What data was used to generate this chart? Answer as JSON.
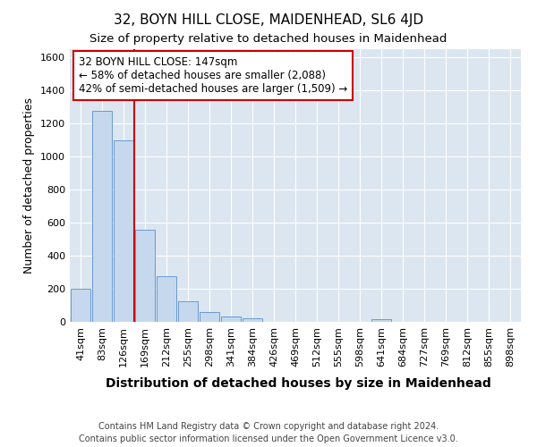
{
  "title": "32, BOYN HILL CLOSE, MAIDENHEAD, SL6 4JD",
  "subtitle": "Size of property relative to detached houses in Maidenhead",
  "xlabel": "Distribution of detached houses by size in Maidenhead",
  "ylabel": "Number of detached properties",
  "footer_line1": "Contains HM Land Registry data © Crown copyright and database right 2024.",
  "footer_line2": "Contains public sector information licensed under the Open Government Licence v3.0.",
  "categories": [
    "41sqm",
    "83sqm",
    "126sqm",
    "169sqm",
    "212sqm",
    "255sqm",
    "298sqm",
    "341sqm",
    "384sqm",
    "426sqm",
    "469sqm",
    "512sqm",
    "555sqm",
    "598sqm",
    "641sqm",
    "684sqm",
    "727sqm",
    "769sqm",
    "812sqm",
    "855sqm",
    "898sqm"
  ],
  "values": [
    200,
    1275,
    1100,
    558,
    275,
    125,
    60,
    33,
    20,
    0,
    0,
    0,
    0,
    0,
    18,
    0,
    0,
    0,
    0,
    0,
    0
  ],
  "bar_color": "#c5d8ed",
  "bar_edge_color": "#5b8fc9",
  "plot_bg_color": "#dce6f1",
  "ylim": [
    0,
    1650
  ],
  "yticks": [
    0,
    200,
    400,
    600,
    800,
    1000,
    1200,
    1400,
    1600
  ],
  "red_line_x": 2.5,
  "annotation_line1": "32 BOYN HILL CLOSE: 147sqm",
  "annotation_line2": "← 58% of detached houses are smaller (2,088)",
  "annotation_line3": "42% of semi-detached houses are larger (1,509) →",
  "title_fontsize": 11,
  "subtitle_fontsize": 9.5,
  "ylabel_fontsize": 9,
  "xlabel_fontsize": 10,
  "tick_fontsize": 8,
  "footer_fontsize": 7,
  "annotation_fontsize": 8.5
}
